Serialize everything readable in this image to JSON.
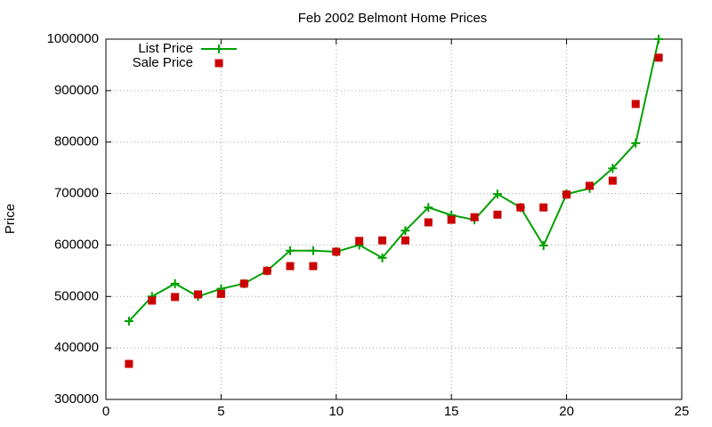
{
  "chart_data": {
    "type": "line",
    "title": "Feb 2002 Belmont Home Prices",
    "y_label": "Price",
    "x": [
      1,
      2,
      3,
      4,
      5,
      6,
      7,
      8,
      9,
      10,
      11,
      12,
      13,
      14,
      15,
      16,
      17,
      18,
      19,
      20,
      21,
      22,
      23,
      24
    ],
    "series": [
      {
        "name": "List Price",
        "color": "#00a000",
        "style": "linespoints",
        "marker": "plus",
        "values": [
          452000,
          500000,
          525000,
          500000,
          515000,
          525000,
          550000,
          589000,
          589000,
          587000,
          600000,
          575000,
          628000,
          673000,
          658000,
          649000,
          699000,
          673000,
          599000,
          699000,
          710000,
          749000,
          798000,
          1000000
        ]
      },
      {
        "name": "Sale Price",
        "color": "#cc0000",
        "style": "points",
        "marker": "square",
        "values": [
          369000,
          492000,
          499000,
          504000,
          505000,
          525000,
          550000,
          559000,
          559000,
          587000,
          608000,
          609000,
          609000,
          644000,
          649000,
          654000,
          659000,
          673000,
          673000,
          698000,
          715000,
          725000,
          874000,
          964000
        ]
      }
    ],
    "xlim": [
      0,
      25
    ],
    "xticks": [
      0,
      5,
      10,
      15,
      20,
      25
    ],
    "ylim": [
      300000,
      1000000
    ],
    "yticks": [
      300000,
      400000,
      500000,
      600000,
      700000,
      800000,
      900000,
      1000000
    ],
    "grid": true,
    "legend": "top-left"
  }
}
